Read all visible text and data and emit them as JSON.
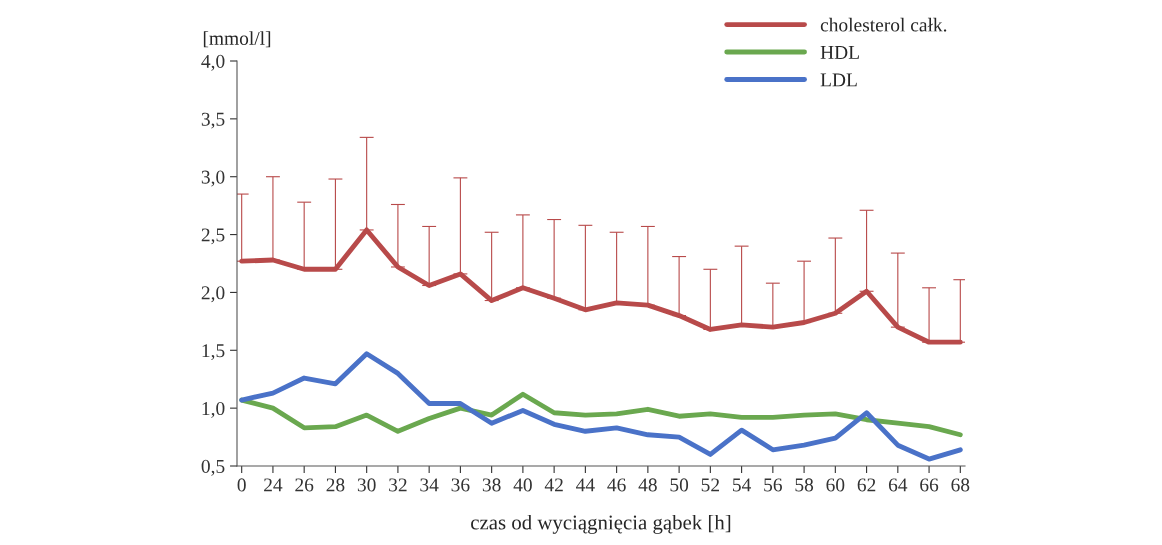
{
  "chart_data": {
    "type": "line",
    "xlabel": "czas od wyciągnięcia gąbek [h]",
    "ylabel": "[mmol/l]",
    "categories": [
      "0",
      "24",
      "26",
      "28",
      "30",
      "32",
      "34",
      "36",
      "38",
      "40",
      "42",
      "44",
      "46",
      "48",
      "50",
      "52",
      "54",
      "56",
      "58",
      "60",
      "62",
      "64",
      "66",
      "68"
    ],
    "series": [
      {
        "name": "cholesterol całk.",
        "color": "#b84a4a",
        "values": [
          2.27,
          2.28,
          2.2,
          2.2,
          2.54,
          2.22,
          2.06,
          2.16,
          1.93,
          2.04,
          1.95,
          1.85,
          1.91,
          1.89,
          1.8,
          1.68,
          1.72,
          1.7,
          1.74,
          1.82,
          2.01,
          1.7,
          1.57,
          1.57
        ],
        "errors": [
          [
            2.27,
            2.85
          ],
          [
            2.28,
            3.0
          ],
          [
            2.2,
            2.78
          ],
          [
            2.2,
            2.98
          ],
          [
            2.54,
            3.34
          ],
          [
            2.22,
            2.76
          ],
          [
            2.06,
            2.57
          ],
          [
            2.16,
            2.99
          ],
          [
            1.93,
            2.52
          ],
          [
            2.04,
            2.67
          ],
          [
            1.95,
            2.63
          ],
          [
            1.85,
            2.58
          ],
          [
            1.91,
            2.52
          ],
          [
            1.89,
            2.57
          ],
          [
            1.8,
            2.31
          ],
          [
            1.68,
            2.2
          ],
          [
            1.72,
            2.4
          ],
          [
            1.7,
            2.08
          ],
          [
            1.74,
            2.27
          ],
          [
            1.82,
            2.47
          ],
          [
            2.01,
            2.71
          ],
          [
            1.7,
            2.34
          ],
          [
            1.57,
            2.04
          ],
          [
            1.57,
            2.11
          ]
        ]
      },
      {
        "name": "HDL",
        "color": "#6aa84f",
        "values": [
          1.07,
          1.0,
          0.83,
          0.84,
          0.94,
          0.8,
          0.91,
          1.0,
          0.94,
          1.12,
          0.96,
          0.94,
          0.95,
          0.99,
          0.93,
          0.95,
          0.92,
          0.92,
          0.94,
          0.95,
          0.9,
          0.87,
          0.84,
          0.77
        ]
      },
      {
        "name": "LDL",
        "color": "#4a72c8",
        "values": [
          1.07,
          1.13,
          1.26,
          1.21,
          1.47,
          1.3,
          1.04,
          1.04,
          0.87,
          0.98,
          0.86,
          0.8,
          0.83,
          0.77,
          0.75,
          0.6,
          0.81,
          0.64,
          0.68,
          0.74,
          0.96,
          0.68,
          0.56,
          0.64
        ]
      }
    ],
    "ylim": [
      0.5,
      4.0
    ],
    "yticks": [
      {
        "value": 0.5,
        "label": "0,5"
      },
      {
        "value": 1.0,
        "label": "1,0"
      },
      {
        "value": 1.5,
        "label": "1,5"
      },
      {
        "value": 2.0,
        "label": "2,0"
      },
      {
        "value": 2.5,
        "label": "2,5"
      },
      {
        "value": 3.0,
        "label": "3,0"
      },
      {
        "value": 3.5,
        "label": "3,5"
      },
      {
        "value": 4.0,
        "label": "4,0"
      }
    ],
    "grid": false,
    "legend": "top right",
    "marker": "none",
    "line_style": "solid"
  }
}
